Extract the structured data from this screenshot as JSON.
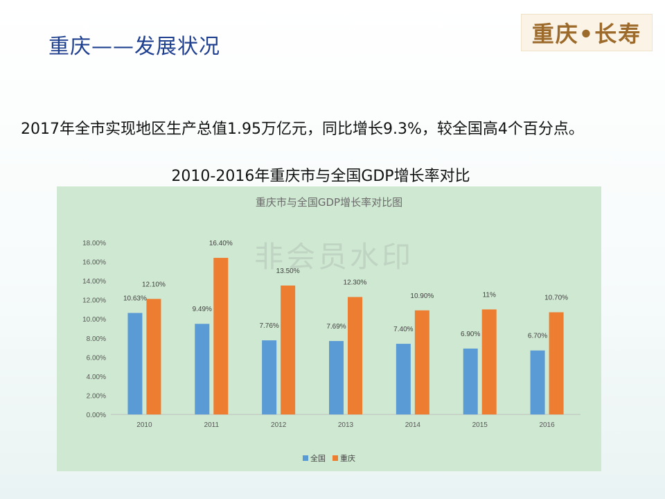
{
  "slide": {
    "title": "重庆——发展状况",
    "brand": "重庆•长寿",
    "summary": "2017年全市实现地区生产总值1.95万亿元，同比增长9.3%，较全国高4个百分点。",
    "chart_heading": "2010-2016年重庆市与全国GDP增长率对比",
    "watermark": "非会员水印"
  },
  "chart_data": {
    "type": "bar",
    "title": "重庆市与全国GDP增长率对比图",
    "categories": [
      "2010",
      "2011",
      "2012",
      "2013",
      "2014",
      "2015",
      "2016"
    ],
    "series": [
      {
        "name": "全国",
        "color": "#5b9bd5",
        "values": [
          10.63,
          9.49,
          7.76,
          7.69,
          7.4,
          6.9,
          6.7
        ],
        "labels": [
          "10.63%",
          "9.49%",
          "7.76%",
          "7.69%",
          "7.40%",
          "6.90%",
          "6.70%"
        ]
      },
      {
        "name": "重庆",
        "color": "#ed7d31",
        "values": [
          12.1,
          16.4,
          13.5,
          12.3,
          10.9,
          11.0,
          10.7
        ],
        "labels": [
          "12.10%",
          "16.40%",
          "13.50%",
          "12.30%",
          "10.90%",
          "11%",
          "10.70%"
        ]
      }
    ],
    "yticks": [
      "0.00%",
      "2.00%",
      "4.00%",
      "6.00%",
      "8.00%",
      "10.00%",
      "12.00%",
      "14.00%",
      "16.00%",
      "18.00%"
    ],
    "ylim": [
      0,
      18
    ],
    "grid": false,
    "legend_position": "bottom"
  }
}
